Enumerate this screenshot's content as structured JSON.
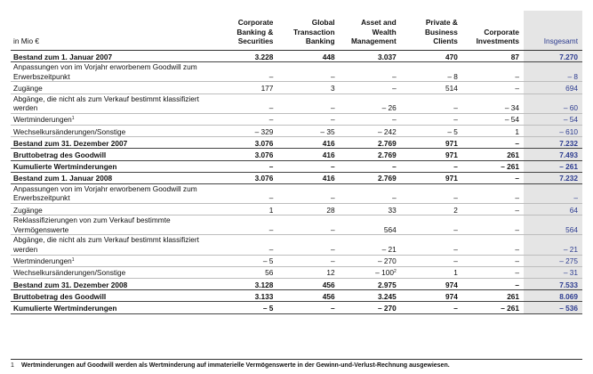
{
  "table": {
    "unit_label": "in Mio €",
    "columns": [
      "Corporate Banking & Securities",
      "Global Transaction Banking",
      "Asset and Wealth Management",
      "Private & Business Clients",
      "Corporate Investments",
      "Insgesamt"
    ],
    "rows": [
      {
        "label": "Bestand zum 1. Januar 2007",
        "values": [
          "3.228",
          "448",
          "3.037",
          "470",
          "87",
          "7.270"
        ]
      },
      {
        "label": "Anpassungen von im Vorjahr erworbenem Goodwill zum Erwerbszeitpunkt",
        "values": [
          "–",
          "–",
          "–",
          "– 8",
          "–",
          "– 8"
        ]
      },
      {
        "label": "Zugänge",
        "values": [
          "177",
          "3",
          "–",
          "514",
          "–",
          "694"
        ]
      },
      {
        "label": "Abgänge, die nicht als zum Verkauf bestimmt klassifiziert werden",
        "values": [
          "–",
          "–",
          "– 26",
          "–",
          "– 34",
          "– 60"
        ]
      },
      {
        "label": "Wertminderungen",
        "sup": "1",
        "values": [
          "–",
          "–",
          "–",
          "–",
          "– 54",
          "– 54"
        ]
      },
      {
        "label": "Wechselkursänderungen/Sonstige",
        "values": [
          "– 329",
          "– 35",
          "– 242",
          "– 5",
          "1",
          "– 610"
        ]
      },
      {
        "label": "Bestand zum 31. Dezember 2007",
        "values": [
          "3.076",
          "416",
          "2.769",
          "971",
          "–",
          "7.232"
        ]
      },
      {
        "label": "Bruttobetrag des Goodwill",
        "values": [
          "3.076",
          "416",
          "2.769",
          "971",
          "261",
          "7.493"
        ]
      },
      {
        "label": "Kumulierte Wertminderungen",
        "values": [
          "–",
          "–",
          "–",
          "–",
          "– 261",
          "– 261"
        ]
      },
      {
        "label": "Bestand zum 1. Januar 2008",
        "values": [
          "3.076",
          "416",
          "2.769",
          "971",
          "–",
          "7.232"
        ]
      },
      {
        "label": "Anpassungen von im Vorjahr erworbenem Goodwill zum Erwerbszeitpunkt",
        "values": [
          "–",
          "–",
          "–",
          "–",
          "–",
          "–"
        ]
      },
      {
        "label": "Zugänge",
        "values": [
          "1",
          "28",
          "33",
          "2",
          "–",
          "64"
        ]
      },
      {
        "label": "Reklassifizierungen von zum Verkauf bestimmte Vermögenswerte",
        "values": [
          "–",
          "–",
          "564",
          "–",
          "–",
          "564"
        ]
      },
      {
        "label": "Abgänge, die nicht als zum Verkauf bestimmt klassifiziert werden",
        "values": [
          "–",
          "–",
          "– 21",
          "–",
          "–",
          "– 21"
        ]
      },
      {
        "label": "Wertminderungen",
        "sup": "1",
        "values": [
          "– 5",
          "–",
          "– 270",
          "–",
          "–",
          "– 275"
        ]
      },
      {
        "label": "Wechselkursänderungen/Sonstige",
        "values": [
          "56",
          "12",
          "– 100",
          "1",
          "–",
          "– 31"
        ],
        "value_sup": {
          "2": "2"
        }
      },
      {
        "label": "Bestand zum 31. Dezember 2008",
        "values": [
          "3.128",
          "456",
          "2.975",
          "974",
          "–",
          "7.533"
        ]
      },
      {
        "label": "Bruttobetrag des Goodwill",
        "values": [
          "3.133",
          "456",
          "3.245",
          "974",
          "261",
          "8.069"
        ]
      },
      {
        "label": "Kumulierte Wertminderungen",
        "values": [
          "– 5",
          "–",
          "– 270",
          "–",
          "– 261",
          "– 536"
        ]
      }
    ]
  },
  "footnote": {
    "number": "1",
    "text": "Wertminderungen auf Goodwill werden als Wertminderung auf immaterielle Vermögenswerte in der Gewinn-und-Verlust-Rechnung ausgewiesen."
  }
}
